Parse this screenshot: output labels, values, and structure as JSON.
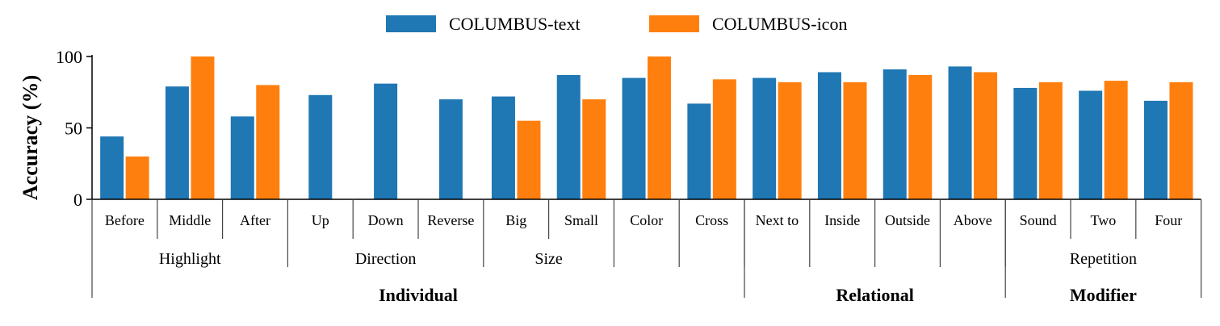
{
  "chart_data": {
    "type": "bar",
    "ylabel": "Accuracy (%)",
    "ylim": [
      0,
      100
    ],
    "yticks": [
      0,
      50,
      100
    ],
    "legend_position": "top-center",
    "grid": false,
    "categories": [
      "Before",
      "Middle",
      "After",
      "Up",
      "Down",
      "Reverse",
      "Big",
      "Small",
      "Color",
      "Cross",
      "Next to",
      "Inside",
      "Outside",
      "Above",
      "Sound",
      "Two",
      "Four"
    ],
    "series": [
      {
        "name": "COLUMBUS-text",
        "color": "#1f77b4",
        "values": [
          44,
          79,
          58,
          73,
          81,
          70,
          72,
          87,
          85,
          67,
          85,
          89,
          91,
          93,
          78,
          76,
          69
        ]
      },
      {
        "name": "COLUMBUS-icon",
        "color": "#ff7f0e",
        "values": [
          30,
          100,
          80,
          null,
          null,
          null,
          55,
          70,
          100,
          84,
          82,
          82,
          87,
          89,
          82,
          83,
          82
        ]
      }
    ],
    "subgroups": [
      {
        "label": "Highlight",
        "start": 0,
        "end": 2
      },
      {
        "label": "Direction",
        "start": 3,
        "end": 5
      },
      {
        "label": "Size",
        "start": 6,
        "end": 7
      },
      {
        "label": "",
        "start": 8,
        "end": 8
      },
      {
        "label": "",
        "start": 9,
        "end": 9
      },
      {
        "label": "",
        "start": 10,
        "end": 10
      },
      {
        "label": "",
        "start": 11,
        "end": 11
      },
      {
        "label": "",
        "start": 12,
        "end": 12
      },
      {
        "label": "",
        "start": 13,
        "end": 13
      },
      {
        "label": "Repetition",
        "start": 14,
        "end": 16
      }
    ],
    "groups": [
      {
        "label": "Individual",
        "start": 0,
        "end": 9
      },
      {
        "label": "Relational",
        "start": 10,
        "end": 13
      },
      {
        "label": "Modifier",
        "start": 14,
        "end": 16
      }
    ]
  }
}
